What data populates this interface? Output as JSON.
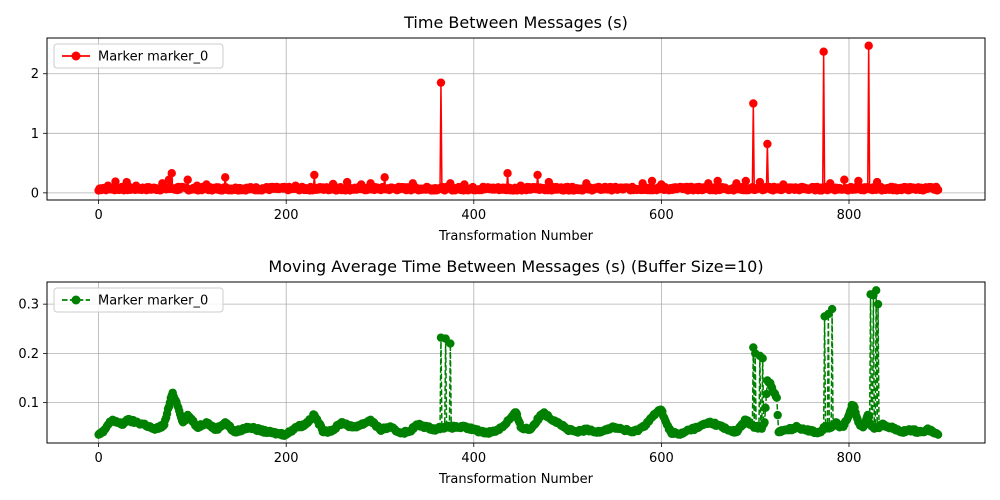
{
  "chart_data": [
    {
      "type": "line",
      "title": "Time Between Messages (s)",
      "xlabel": "Transformation Number",
      "ylabel": "",
      "xlim": [
        -55,
        945
      ],
      "ylim": [
        -0.12,
        2.6
      ],
      "xticks": [
        0,
        200,
        400,
        600,
        800
      ],
      "yticks": [
        0,
        1,
        2
      ],
      "grid": true,
      "legend_position": "top-left",
      "color": "#ff0000",
      "line_style": "solid",
      "marker": "circle",
      "series": [
        {
          "name": "Marker marker_0",
          "baseline": 0.04,
          "points": [
            [
              0,
              0.04
            ],
            [
              5,
              0.08
            ],
            [
              10,
              0.12
            ],
            [
              15,
              0.06
            ],
            [
              18,
              0.19
            ],
            [
              25,
              0.1
            ],
            [
              30,
              0.18
            ],
            [
              40,
              0.12
            ],
            [
              50,
              0.08
            ],
            [
              60,
              0.06
            ],
            [
              68,
              0.16
            ],
            [
              75,
              0.22
            ],
            [
              78,
              0.33
            ],
            [
              85,
              0.1
            ],
            [
              95,
              0.22
            ],
            [
              105,
              0.12
            ],
            [
              115,
              0.14
            ],
            [
              135,
              0.26
            ],
            [
              150,
              0.08
            ],
            [
              170,
              0.06
            ],
            [
              185,
              0.1
            ],
            [
              210,
              0.12
            ],
            [
              230,
              0.3
            ],
            [
              250,
              0.15
            ],
            [
              265,
              0.18
            ],
            [
              280,
              0.14
            ],
            [
              290,
              0.16
            ],
            [
              305,
              0.26
            ],
            [
              320,
              0.1
            ],
            [
              335,
              0.16
            ],
            [
              350,
              0.1
            ],
            [
              365,
              1.85
            ],
            [
              375,
              0.16
            ],
            [
              390,
              0.14
            ],
            [
              410,
              0.1
            ],
            [
              436,
              0.33
            ],
            [
              450,
              0.12
            ],
            [
              468,
              0.3
            ],
            [
              480,
              0.18
            ],
            [
              500,
              0.1
            ],
            [
              520,
              0.16
            ],
            [
              540,
              0.1
            ],
            [
              560,
              0.08
            ],
            [
              580,
              0.16
            ],
            [
              590,
              0.2
            ],
            [
              600,
              0.14
            ],
            [
              620,
              0.1
            ],
            [
              640,
              0.1
            ],
            [
              650,
              0.16
            ],
            [
              660,
              0.2
            ],
            [
              680,
              0.16
            ],
            [
              690,
              0.2
            ],
            [
              698,
              1.5
            ],
            [
              705,
              0.18
            ],
            [
              713,
              0.82
            ],
            [
              720,
              0.1
            ],
            [
              730,
              0.14
            ],
            [
              750,
              0.1
            ],
            [
              773,
              2.37
            ],
            [
              780,
              0.16
            ],
            [
              795,
              0.22
            ],
            [
              810,
              0.2
            ],
            [
              821,
              2.47
            ],
            [
              830,
              0.18
            ],
            [
              845,
              0.1
            ],
            [
              860,
              0.06
            ],
            [
              880,
              0.06
            ],
            [
              895,
              0.05
            ]
          ]
        }
      ]
    },
    {
      "type": "line",
      "title": "Moving Average Time Between Messages (s) (Buffer Size=10)",
      "xlabel": "Transformation Number",
      "ylabel": "",
      "xlim": [
        -55,
        945
      ],
      "ylim": [
        0.018,
        0.345
      ],
      "xticks": [
        0,
        200,
        400,
        600,
        800
      ],
      "yticks": [
        0.1,
        0.2,
        0.3
      ],
      "grid": true,
      "legend_position": "top-left",
      "color": "#008000",
      "line_style": "dashed",
      "marker": "circle",
      "series": [
        {
          "name": "Marker marker_0",
          "points": [
            [
              0,
              0.035
            ],
            [
              5,
              0.04
            ],
            [
              10,
              0.055
            ],
            [
              15,
              0.065
            ],
            [
              20,
              0.06
            ],
            [
              25,
              0.055
            ],
            [
              30,
              0.065
            ],
            [
              40,
              0.06
            ],
            [
              50,
              0.055
            ],
            [
              60,
              0.045
            ],
            [
              70,
              0.055
            ],
            [
              76,
              0.1
            ],
            [
              79,
              0.12
            ],
            [
              82,
              0.105
            ],
            [
              85,
              0.09
            ],
            [
              90,
              0.06
            ],
            [
              95,
              0.075
            ],
            [
              105,
              0.05
            ],
            [
              115,
              0.06
            ],
            [
              125,
              0.045
            ],
            [
              135,
              0.06
            ],
            [
              145,
              0.04
            ],
            [
              160,
              0.05
            ],
            [
              180,
              0.04
            ],
            [
              200,
              0.035
            ],
            [
              210,
              0.05
            ],
            [
              220,
              0.055
            ],
            [
              230,
              0.075
            ],
            [
              240,
              0.04
            ],
            [
              250,
              0.045
            ],
            [
              260,
              0.06
            ],
            [
              270,
              0.05
            ],
            [
              280,
              0.055
            ],
            [
              290,
              0.065
            ],
            [
              300,
              0.045
            ],
            [
              310,
              0.05
            ],
            [
              320,
              0.04
            ],
            [
              330,
              0.04
            ],
            [
              340,
              0.055
            ],
            [
              350,
              0.05
            ],
            [
              360,
              0.045
            ],
            [
              365,
              0.232
            ],
            [
              370,
              0.23
            ],
            [
              375,
              0.22
            ],
            [
              380,
              0.05
            ],
            [
              390,
              0.05
            ],
            [
              400,
              0.045
            ],
            [
              410,
              0.04
            ],
            [
              420,
              0.04
            ],
            [
              430,
              0.05
            ],
            [
              440,
              0.07
            ],
            [
              445,
              0.08
            ],
            [
              450,
              0.05
            ],
            [
              460,
              0.045
            ],
            [
              470,
              0.07
            ],
            [
              475,
              0.08
            ],
            [
              480,
              0.07
            ],
            [
              490,
              0.06
            ],
            [
              500,
              0.045
            ],
            [
              510,
              0.04
            ],
            [
              520,
              0.045
            ],
            [
              530,
              0.04
            ],
            [
              540,
              0.045
            ],
            [
              550,
              0.05
            ],
            [
              560,
              0.045
            ],
            [
              570,
              0.04
            ],
            [
              580,
              0.05
            ],
            [
              590,
              0.07
            ],
            [
              595,
              0.08
            ],
            [
              600,
              0.085
            ],
            [
              605,
              0.06
            ],
            [
              610,
              0.04
            ],
            [
              620,
              0.035
            ],
            [
              630,
              0.045
            ],
            [
              640,
              0.05
            ],
            [
              650,
              0.06
            ],
            [
              660,
              0.055
            ],
            [
              670,
              0.045
            ],
            [
              680,
              0.04
            ],
            [
              690,
              0.065
            ],
            [
              698,
              0.212
            ],
            [
              700,
              0.2
            ],
            [
              705,
              0.195
            ],
            [
              708,
              0.19
            ],
            [
              710,
              0.06
            ],
            [
              713,
              0.145
            ],
            [
              716,
              0.14
            ],
            [
              718,
              0.13
            ],
            [
              720,
              0.12
            ],
            [
              723,
              0.11
            ],
            [
              725,
              0.04
            ],
            [
              735,
              0.045
            ],
            [
              745,
              0.05
            ],
            [
              755,
              0.045
            ],
            [
              765,
              0.04
            ],
            [
              770,
              0.04
            ],
            [
              774,
              0.275
            ],
            [
              778,
              0.28
            ],
            [
              782,
              0.29
            ],
            [
              786,
              0.06
            ],
            [
              790,
              0.05
            ],
            [
              795,
              0.055
            ],
            [
              800,
              0.075
            ],
            [
              803,
              0.095
            ],
            [
              806,
              0.09
            ],
            [
              810,
              0.06
            ],
            [
              815,
              0.05
            ],
            [
              820,
              0.075
            ],
            [
              823,
              0.32
            ],
            [
              826,
              0.318
            ],
            [
              829,
              0.328
            ],
            [
              831,
              0.3
            ],
            [
              835,
              0.055
            ],
            [
              845,
              0.05
            ],
            [
              855,
              0.04
            ],
            [
              865,
              0.045
            ],
            [
              875,
              0.04
            ],
            [
              885,
              0.045
            ],
            [
              895,
              0.035
            ]
          ]
        }
      ]
    }
  ]
}
